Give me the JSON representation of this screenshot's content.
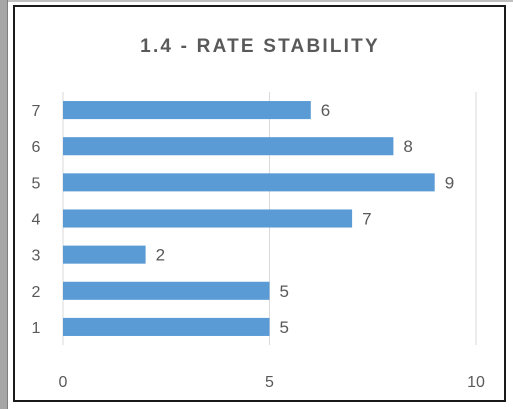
{
  "chart_data": {
    "type": "bar",
    "orientation": "horizontal",
    "title": "1.4 - RATE STABILITY",
    "categories": [
      "1",
      "2",
      "3",
      "4",
      "5",
      "6",
      "7"
    ],
    "values": [
      5,
      5,
      2,
      7,
      9,
      8,
      6
    ],
    "xlim": [
      0,
      10
    ],
    "x_ticks": [
      "0",
      "5",
      "10"
    ],
    "grid": "vertical",
    "data_labels": true,
    "legend": "none",
    "colors": {
      "bar": "#5b9bd5",
      "text": "#595959",
      "grid": "#d9d9d9"
    }
  }
}
